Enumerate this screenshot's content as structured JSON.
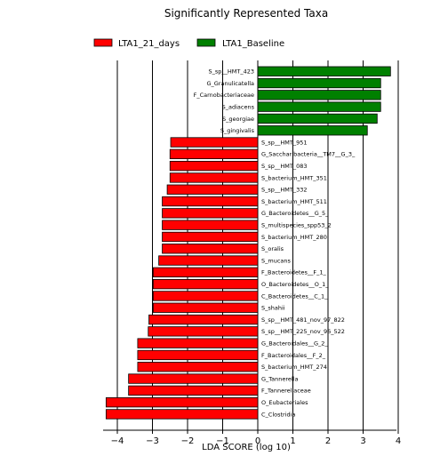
{
  "chart_data": {
    "type": "bar",
    "orientation": "horizontal",
    "title": "Significantly Represented Taxa",
    "xlabel": "LDA SCORE (log 10)",
    "ylabel": "",
    "xlim": [
      -4.5,
      4.2
    ],
    "xticks": [
      -4,
      -3,
      -2,
      -1,
      0,
      1,
      2,
      3,
      4
    ],
    "grid": "vertical",
    "legend_position": "top-left",
    "legend": [
      {
        "name": "LTA1_21_days",
        "color": "#ff0000"
      },
      {
        "name": "LTA1_Baseline",
        "color": "#008000"
      }
    ],
    "categories": [
      "S_sp__HMT_423",
      "G_Granulicatella",
      "F_Carnobacteriaceae",
      "S_adiacens",
      "S_georgiae",
      "S_gingivalis",
      "S_sp__HMT_951",
      "G_Saccharibacteria__TM7__G_3_",
      "S_sp__HMT_083",
      "S_bacterium_HMT_351",
      "S_sp__HMT_332",
      "S_bacterium_HMT_511",
      "G_Bacteroidetes__G_5_",
      "S_multispecies_spp53_2",
      "S_bacterium_HMT_280",
      "S_oralis",
      "S_mucans",
      "F_Bacteroidetes__F_1_",
      "O_Bacteroidetes__O_1_",
      "C_Bacteroidetes__C_1_",
      "S_shahii",
      "S_sp__HMT_481_nov_97_822",
      "S_sp__HMT_225_nov_96_522",
      "G_Bacteroidales__G_2_",
      "F_Bacteroidales__F_2_",
      "S_bacterium_HMT_274",
      "G_Tannerella",
      "F_Tannerellaceae",
      "O_Eubacteriales",
      "C_Clostridia"
    ],
    "values": [
      3.78,
      3.5,
      3.5,
      3.5,
      3.4,
      3.12,
      -2.48,
      -2.5,
      -2.5,
      -2.5,
      -2.58,
      -2.72,
      -2.72,
      -2.72,
      -2.72,
      -2.72,
      -2.82,
      -2.98,
      -2.98,
      -2.98,
      -2.98,
      -3.1,
      -3.12,
      -3.42,
      -3.42,
      -3.42,
      -3.68,
      -3.68,
      -4.32,
      -4.32
    ],
    "groups": [
      "LTA1_Baseline",
      "LTA1_Baseline",
      "LTA1_Baseline",
      "LTA1_Baseline",
      "LTA1_Baseline",
      "LTA1_Baseline",
      "LTA1_21_days",
      "LTA1_21_days",
      "LTA1_21_days",
      "LTA1_21_days",
      "LTA1_21_days",
      "LTA1_21_days",
      "LTA1_21_days",
      "LTA1_21_days",
      "LTA1_21_days",
      "LTA1_21_days",
      "LTA1_21_days",
      "LTA1_21_days",
      "LTA1_21_days",
      "LTA1_21_days",
      "LTA1_21_days",
      "LTA1_21_days",
      "LTA1_21_days",
      "LTA1_21_days",
      "LTA1_21_days",
      "LTA1_21_days",
      "LTA1_21_days",
      "LTA1_21_days",
      "LTA1_21_days",
      "LTA1_21_days"
    ]
  }
}
